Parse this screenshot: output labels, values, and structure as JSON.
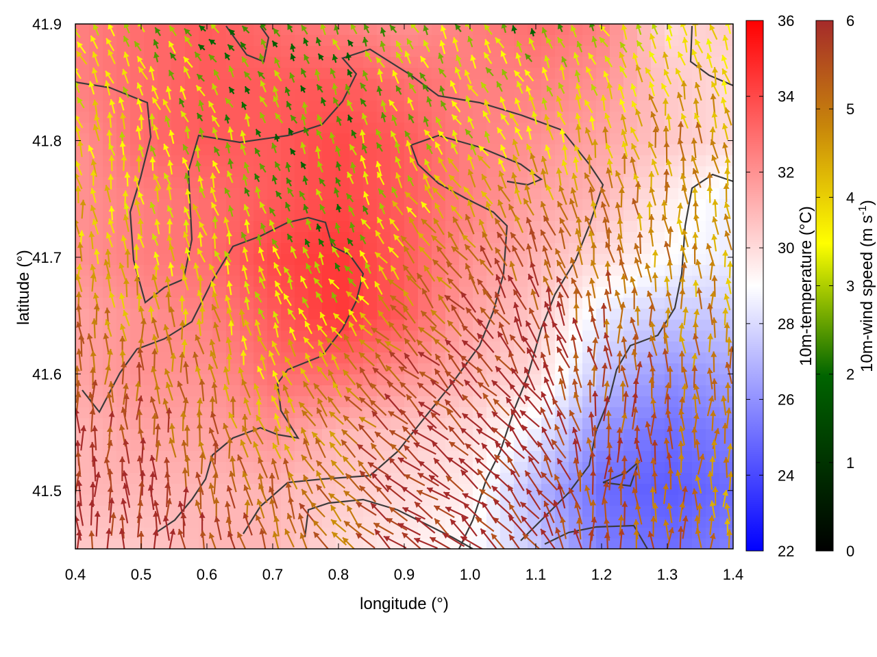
{
  "chart_data": {
    "type": "heatmap",
    "title": "",
    "xlabel": "longitude (°)",
    "ylabel": "latitude (°)",
    "xlim": [
      0.4,
      1.4
    ],
    "ylim": [
      41.45,
      41.9
    ],
    "xticks": [
      "0.4",
      "0.5",
      "0.6",
      "0.7",
      "0.8",
      "0.9",
      "1.0",
      "1.1",
      "1.2",
      "1.3",
      "1.4"
    ],
    "yticks": [
      "41.5",
      "41.6",
      "41.7",
      "41.8",
      "41.9"
    ],
    "grid": false,
    "temperature_colorbar": {
      "label": "10m-temperature (°C)",
      "range": [
        22,
        36
      ],
      "ticks": [
        "22",
        "24",
        "26",
        "28",
        "30",
        "32",
        "34",
        "36"
      ],
      "colors": [
        "#0000ff",
        "#ffffff",
        "#ff0000"
      ]
    },
    "wind_colorbar": {
      "label_main": "10m-wind speed (m s",
      "label_sup": "-1",
      "label_end": ")",
      "range": [
        0,
        6
      ],
      "ticks": [
        "0",
        "1",
        "2",
        "3",
        "4",
        "5",
        "6"
      ],
      "colors": [
        "#000000",
        "#006400",
        "#ffff00",
        "#c8860a",
        "#a52a2a"
      ]
    },
    "temperature_field": {
      "lon": [
        0.4,
        0.5,
        0.6,
        0.7,
        0.8,
        0.9,
        1.0,
        1.1,
        1.2,
        1.3,
        1.4
      ],
      "lat": [
        41.9,
        41.85,
        41.8,
        41.75,
        41.7,
        41.65,
        41.6,
        41.55,
        41.5,
        41.45
      ],
      "values": [
        [
          32.5,
          33.0,
          33.5,
          33.0,
          32.5,
          32.0,
          32.5,
          33.0,
          32.5,
          30.0,
          30.5
        ],
        [
          32.5,
          33.0,
          33.5,
          33.5,
          33.5,
          33.0,
          32.5,
          32.5,
          32.0,
          30.5,
          30.0
        ],
        [
          32.0,
          33.0,
          33.5,
          33.5,
          34.0,
          33.5,
          32.5,
          32.0,
          31.5,
          30.5,
          30.0
        ],
        [
          32.0,
          32.5,
          33.0,
          33.5,
          34.0,
          33.5,
          32.5,
          31.5,
          31.0,
          29.5,
          28.5
        ],
        [
          32.0,
          32.5,
          33.0,
          34.0,
          34.5,
          33.5,
          32.0,
          31.0,
          30.0,
          29.0,
          28.5
        ],
        [
          31.5,
          32.0,
          32.5,
          33.5,
          34.5,
          33.5,
          31.5,
          30.5,
          28.5,
          27.5,
          27.5
        ],
        [
          31.5,
          32.0,
          32.0,
          33.0,
          33.0,
          32.0,
          31.0,
          30.0,
          27.5,
          26.0,
          26.5
        ],
        [
          31.0,
          31.5,
          31.5,
          32.0,
          31.0,
          30.5,
          30.0,
          28.5,
          26.0,
          25.0,
          25.5
        ],
        [
          31.0,
          31.0,
          31.0,
          31.0,
          30.5,
          30.0,
          29.5,
          27.0,
          25.0,
          24.5,
          25.0
        ],
        [
          30.5,
          30.5,
          31.0,
          31.0,
          30.0,
          29.5,
          29.0,
          27.5,
          25.5,
          25.0,
          25.5
        ]
      ]
    },
    "wind_field": {
      "lon": [
        0.4,
        0.5,
        0.6,
        0.7,
        0.8,
        0.9,
        1.0,
        1.1,
        1.2,
        1.3,
        1.4
      ],
      "lat": [
        41.9,
        41.8,
        41.7,
        41.6,
        41.5
      ],
      "speed": [
        [
          3.0,
          2.5,
          2.0,
          2.0,
          2.0,
          2.5,
          2.5,
          2.0,
          2.5,
          3.0,
          3.0
        ],
        [
          3.5,
          3.0,
          2.5,
          2.0,
          2.0,
          2.5,
          3.0,
          3.5,
          4.0,
          4.5,
          4.5
        ],
        [
          4.0,
          3.5,
          3.5,
          2.5,
          2.0,
          4.0,
          5.0,
          5.5,
          5.0,
          4.5,
          4.0
        ],
        [
          5.5,
          5.0,
          4.5,
          3.5,
          4.5,
          5.5,
          6.0,
          6.0,
          5.5,
          5.0,
          4.5
        ],
        [
          6.0,
          6.0,
          5.5,
          5.0,
          5.0,
          6.0,
          6.0,
          6.0,
          5.5,
          5.0,
          4.5
        ]
      ],
      "direction_to_deg": [
        [
          330,
          330,
          315,
          330,
          340,
          330,
          330,
          335,
          330,
          340,
          345
        ],
        [
          345,
          350,
          340,
          335,
          340,
          335,
          330,
          335,
          345,
          350,
          350
        ],
        [
          355,
          350,
          345,
          340,
          330,
          320,
          325,
          340,
          350,
          355,
          355
        ],
        [
          0,
          355,
          350,
          340,
          320,
          310,
          315,
          330,
          355,
          0,
          0
        ],
        [
          0,
          0,
          355,
          345,
          320,
          305,
          310,
          320,
          0,
          0,
          0
        ]
      ]
    }
  }
}
